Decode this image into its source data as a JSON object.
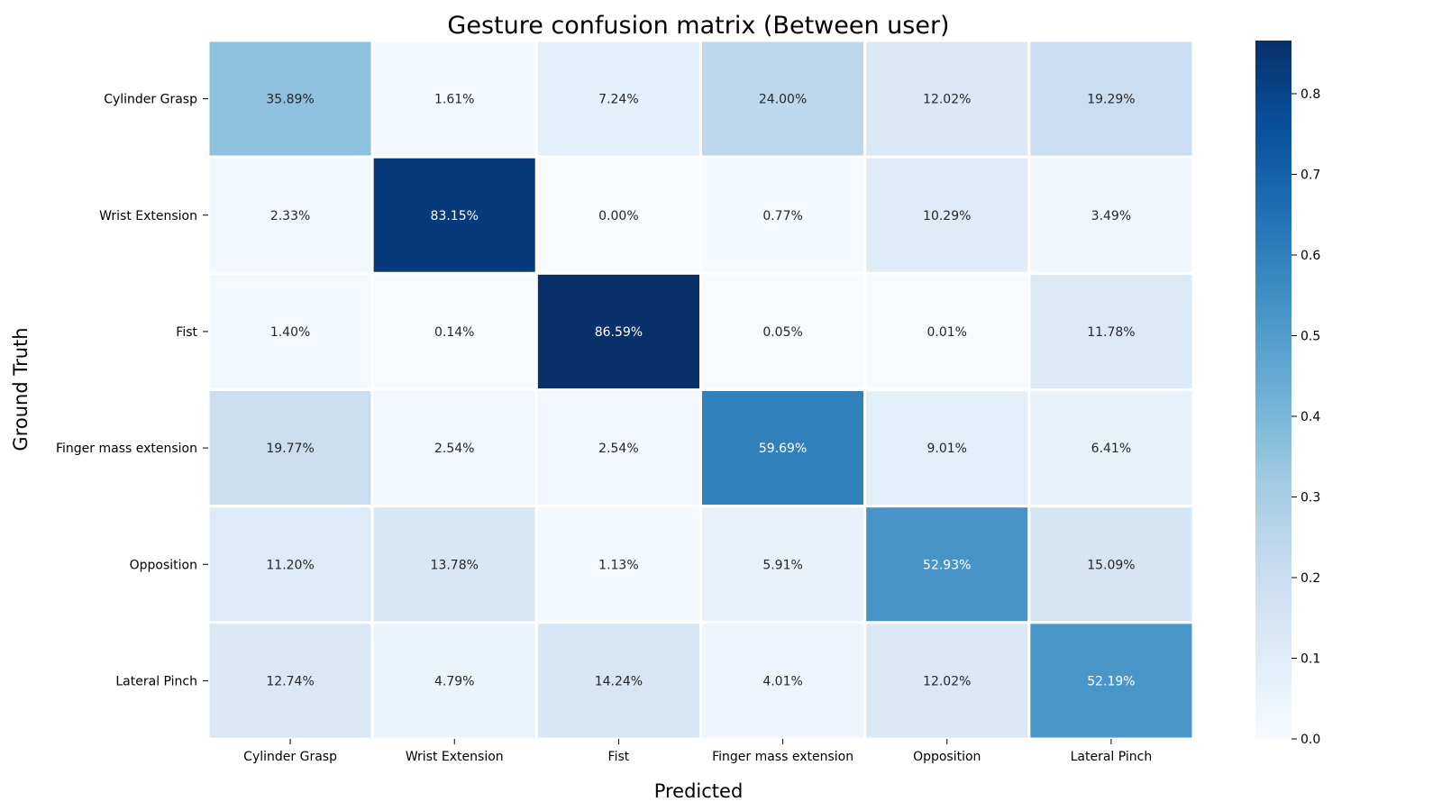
{
  "chart_data": {
    "type": "heatmap",
    "title": "Gesture confusion matrix (Between user)",
    "xlabel": "Predicted",
    "ylabel": "Ground Truth",
    "x_categories": [
      "Cylinder Grasp",
      "Wrist Extension",
      "Fist",
      "Finger mass extension",
      "Opposition",
      "Lateral Pinch"
    ],
    "y_categories": [
      "Cylinder Grasp",
      "Wrist Extension",
      "Fist",
      "Finger mass extension",
      "Opposition",
      "Lateral Pinch"
    ],
    "values": [
      [
        0.3589,
        0.0161,
        0.0724,
        0.24,
        0.1202,
        0.1929
      ],
      [
        0.0233,
        0.8315,
        0.0,
        0.0077,
        0.1029,
        0.0349
      ],
      [
        0.014,
        0.0014,
        0.8659,
        0.0005,
        0.0001,
        0.1178
      ],
      [
        0.1977,
        0.0254,
        0.0254,
        0.5969,
        0.0901,
        0.0641
      ],
      [
        0.112,
        0.1378,
        0.0113,
        0.0591,
        0.5293,
        0.1509
      ],
      [
        0.1274,
        0.0479,
        0.1424,
        0.0401,
        0.1202,
        0.5219
      ]
    ],
    "cell_labels": [
      [
        "35.89%",
        "1.61%",
        "7.24%",
        "24.00%",
        "12.02%",
        "19.29%"
      ],
      [
        "2.33%",
        "83.15%",
        "0.00%",
        "0.77%",
        "10.29%",
        "3.49%"
      ],
      [
        "1.40%",
        "0.14%",
        "86.59%",
        "0.05%",
        "0.01%",
        "11.78%"
      ],
      [
        "19.77%",
        "2.54%",
        "2.54%",
        "59.69%",
        "9.01%",
        "6.41%"
      ],
      [
        "11.20%",
        "13.78%",
        "1.13%",
        "5.91%",
        "52.93%",
        "15.09%"
      ],
      [
        "12.74%",
        "4.79%",
        "14.24%",
        "4.01%",
        "12.02%",
        "52.19%"
      ]
    ],
    "colormap": "Blues",
    "colorbar": {
      "min": 0.0,
      "max": 0.8659,
      "ticks": [
        0.0,
        0.1,
        0.2,
        0.3,
        0.4,
        0.5,
        0.6,
        0.7,
        0.8
      ],
      "tick_labels": [
        "0.0",
        "0.1",
        "0.2",
        "0.3",
        "0.4",
        "0.5",
        "0.6",
        "0.7",
        "0.8"
      ],
      "position": "right"
    },
    "grid": false
  },
  "colors": {
    "cell_border": "#ffffff",
    "dark_text": "#262626",
    "light_text": "#ffffff"
  }
}
